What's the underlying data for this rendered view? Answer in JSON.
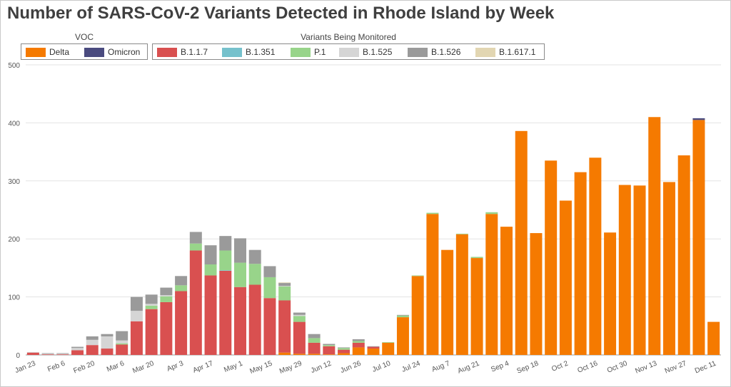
{
  "chart_data": {
    "type": "bar",
    "stacked": true,
    "title": "Number of SARS-CoV-2 Variants Detected in Rhode Island by Week",
    "ylim": [
      0,
      500
    ],
    "yticks": [
      "0",
      "100",
      "200",
      "300",
      "400",
      "500"
    ],
    "grid": true,
    "legend_groups": [
      {
        "title": "VOC",
        "items": [
          {
            "name": "Delta",
            "color": "#f57a00"
          },
          {
            "name": "Omicron",
            "color": "#4a4b7f"
          }
        ]
      },
      {
        "title": "Variants Being Monitored",
        "items": [
          {
            "name": "B.1.1.7",
            "color": "#d95050"
          },
          {
            "name": "B.1.351",
            "color": "#76c1cc"
          },
          {
            "name": "P.1",
            "color": "#98d48a"
          },
          {
            "name": "B.1.525",
            "color": "#d5d5d5"
          },
          {
            "name": "B.1.526",
            "color": "#9a9a9a"
          },
          {
            "name": "B.1.617.1",
            "color": "#e2d6b2"
          }
        ]
      }
    ],
    "x_tick_labels": [
      "Jan 23",
      "Feb 6",
      "Feb 20",
      "Mar 6",
      "Mar 20",
      "Apr 3",
      "Apr 17",
      "May 1",
      "May 15",
      "May 29",
      "Jun 12",
      "Jun 26",
      "Jul 10",
      "Jul 24",
      "Aug 7",
      "Aug 21",
      "Sep 4",
      "Sep 18",
      "Oct 2",
      "Oct 16",
      "Oct 30",
      "Nov 13",
      "Nov 27",
      "Dec 11"
    ],
    "series_order": [
      "Delta",
      "B.1.1.7",
      "B.1.351",
      "P.1",
      "B.1.525",
      "B.1.526",
      "B.1.617.1",
      "Omicron"
    ],
    "weeks": [
      {
        "Delta": 0,
        "B.1.1.7": 4,
        "B.1.351": 0,
        "P.1": 0,
        "B.1.525": 1,
        "B.1.526": 0,
        "B.1.617.1": 0,
        "Omicron": 0
      },
      {
        "Delta": 0,
        "B.1.1.7": 1,
        "B.1.351": 0,
        "P.1": 0,
        "B.1.525": 1,
        "B.1.526": 1,
        "B.1.617.1": 0,
        "Omicron": 0
      },
      {
        "Delta": 0,
        "B.1.1.7": 1,
        "B.1.351": 0,
        "P.1": 0,
        "B.1.525": 1,
        "B.1.526": 1,
        "B.1.617.1": 0,
        "Omicron": 0
      },
      {
        "Delta": 0,
        "B.1.1.7": 8,
        "B.1.351": 0,
        "P.1": 0,
        "B.1.525": 4,
        "B.1.526": 2,
        "B.1.617.1": 0,
        "Omicron": 0
      },
      {
        "Delta": 0,
        "B.1.1.7": 17,
        "B.1.351": 0,
        "P.1": 0,
        "B.1.525": 9,
        "B.1.526": 6,
        "B.1.617.1": 0,
        "Omicron": 0
      },
      {
        "Delta": 0,
        "B.1.1.7": 11,
        "B.1.351": 0,
        "P.1": 0,
        "B.1.525": 21,
        "B.1.526": 4,
        "B.1.617.1": 0,
        "Omicron": 0
      },
      {
        "Delta": 0,
        "B.1.1.7": 18,
        "B.1.351": 0,
        "P.1": 2,
        "B.1.525": 5,
        "B.1.526": 16,
        "B.1.617.1": 0,
        "Omicron": 0
      },
      {
        "Delta": 0,
        "B.1.1.7": 58,
        "B.1.351": 0,
        "P.1": 0,
        "B.1.525": 18,
        "B.1.526": 24,
        "B.1.617.1": 0,
        "Omicron": 0
      },
      {
        "Delta": 0,
        "B.1.1.7": 79,
        "B.1.351": 0,
        "P.1": 6,
        "B.1.525": 3,
        "B.1.526": 16,
        "B.1.617.1": 0,
        "Omicron": 0
      },
      {
        "Delta": 0,
        "B.1.1.7": 91,
        "B.1.351": 0,
        "P.1": 10,
        "B.1.525": 2,
        "B.1.526": 13,
        "B.1.617.1": 0,
        "Omicron": 0
      },
      {
        "Delta": 0,
        "B.1.1.7": 110,
        "B.1.351": 0,
        "P.1": 10,
        "B.1.525": 0,
        "B.1.526": 16,
        "B.1.617.1": 0,
        "Omicron": 0
      },
      {
        "Delta": 0,
        "B.1.1.7": 180,
        "B.1.351": 0,
        "P.1": 12,
        "B.1.525": 0,
        "B.1.526": 20,
        "B.1.617.1": 0,
        "Omicron": 0
      },
      {
        "Delta": 0,
        "B.1.1.7": 137,
        "B.1.351": 0,
        "P.1": 19,
        "B.1.525": 0,
        "B.1.526": 33,
        "B.1.617.1": 0,
        "Omicron": 0
      },
      {
        "Delta": 0,
        "B.1.1.7": 145,
        "B.1.351": 1,
        "P.1": 34,
        "B.1.525": 0,
        "B.1.526": 25,
        "B.1.617.1": 0,
        "Omicron": 0
      },
      {
        "Delta": 0,
        "B.1.1.7": 117,
        "B.1.351": 0,
        "P.1": 42,
        "B.1.525": 0,
        "B.1.526": 42,
        "B.1.617.1": 0,
        "Omicron": 0
      },
      {
        "Delta": 0,
        "B.1.1.7": 121,
        "B.1.351": 0,
        "P.1": 36,
        "B.1.525": 0,
        "B.1.526": 24,
        "B.1.617.1": 0,
        "Omicron": 0
      },
      {
        "Delta": 0,
        "B.1.1.7": 98,
        "B.1.351": 0,
        "P.1": 36,
        "B.1.525": 0,
        "B.1.526": 19,
        "B.1.617.1": 0,
        "Omicron": 0
      },
      {
        "Delta": 4,
        "B.1.1.7": 90,
        "B.1.351": 0,
        "P.1": 24,
        "B.1.525": 1,
        "B.1.526": 5,
        "B.1.617.1": 1,
        "Omicron": 0
      },
      {
        "Delta": 2,
        "B.1.1.7": 55,
        "B.1.351": 0,
        "P.1": 10,
        "B.1.525": 2,
        "B.1.526": 4,
        "B.1.617.1": 0,
        "Omicron": 0
      },
      {
        "Delta": 2,
        "B.1.1.7": 19,
        "B.1.351": 0,
        "P.1": 8,
        "B.1.525": 0,
        "B.1.526": 7,
        "B.1.617.1": 0,
        "Omicron": 0
      },
      {
        "Delta": 1,
        "B.1.1.7": 14,
        "B.1.351": 0,
        "P.1": 2,
        "B.1.525": 0,
        "B.1.526": 2,
        "B.1.617.1": 0,
        "Omicron": 0
      },
      {
        "Delta": 3,
        "B.1.1.7": 6,
        "B.1.351": 0,
        "P.1": 3,
        "B.1.525": 0,
        "B.1.526": 1,
        "B.1.617.1": 0,
        "Omicron": 0
      },
      {
        "Delta": 13,
        "B.1.1.7": 8,
        "B.1.351": 0,
        "P.1": 3,
        "B.1.525": 0,
        "B.1.526": 3,
        "B.1.617.1": 0,
        "Omicron": 0
      },
      {
        "Delta": 11,
        "B.1.1.7": 3,
        "B.1.351": 0,
        "P.1": 0,
        "B.1.525": 0,
        "B.1.526": 1,
        "B.1.617.1": 0,
        "Omicron": 0
      },
      {
        "Delta": 21,
        "B.1.1.7": 0,
        "B.1.351": 0,
        "P.1": 1,
        "B.1.525": 0,
        "B.1.526": 0,
        "B.1.617.1": 0,
        "Omicron": 0
      },
      {
        "Delta": 65,
        "B.1.1.7": 0,
        "B.1.351": 0,
        "P.1": 3,
        "B.1.525": 0,
        "B.1.526": 1,
        "B.1.617.1": 0,
        "Omicron": 0
      },
      {
        "Delta": 136,
        "B.1.1.7": 0,
        "B.1.351": 0,
        "P.1": 1,
        "B.1.525": 0,
        "B.1.526": 0,
        "B.1.617.1": 0,
        "Omicron": 0
      },
      {
        "Delta": 243,
        "B.1.1.7": 0,
        "B.1.351": 0,
        "P.1": 2,
        "B.1.525": 0,
        "B.1.526": 0,
        "B.1.617.1": 0,
        "Omicron": 0
      },
      {
        "Delta": 181,
        "B.1.1.7": 0,
        "B.1.351": 0,
        "P.1": 0,
        "B.1.525": 0,
        "B.1.526": 0,
        "B.1.617.1": 0,
        "Omicron": 0
      },
      {
        "Delta": 208,
        "B.1.1.7": 0,
        "B.1.351": 0,
        "P.1": 1,
        "B.1.525": 0,
        "B.1.526": 0,
        "B.1.617.1": 0,
        "Omicron": 0
      },
      {
        "Delta": 167,
        "B.1.1.7": 0,
        "B.1.351": 0,
        "P.1": 2,
        "B.1.525": 0,
        "B.1.526": 0,
        "B.1.617.1": 0,
        "Omicron": 0
      },
      {
        "Delta": 243,
        "B.1.1.7": 0,
        "B.1.351": 0,
        "P.1": 3,
        "B.1.525": 0,
        "B.1.526": 0,
        "B.1.617.1": 0,
        "Omicron": 0
      },
      {
        "Delta": 221,
        "B.1.1.7": 0,
        "B.1.351": 0,
        "P.1": 0,
        "B.1.525": 0,
        "B.1.526": 0,
        "B.1.617.1": 0,
        "Omicron": 0
      },
      {
        "Delta": 386,
        "B.1.1.7": 0,
        "B.1.351": 0,
        "P.1": 0,
        "B.1.525": 0,
        "B.1.526": 0,
        "B.1.617.1": 0,
        "Omicron": 0
      },
      {
        "Delta": 210,
        "B.1.1.7": 0,
        "B.1.351": 0,
        "P.1": 0,
        "B.1.525": 0,
        "B.1.526": 0,
        "B.1.617.1": 0,
        "Omicron": 0
      },
      {
        "Delta": 335,
        "B.1.1.7": 0,
        "B.1.351": 0,
        "P.1": 0,
        "B.1.525": 0,
        "B.1.526": 0,
        "B.1.617.1": 0,
        "Omicron": 0
      },
      {
        "Delta": 266,
        "B.1.1.7": 0,
        "B.1.351": 0,
        "P.1": 0,
        "B.1.525": 0,
        "B.1.526": 0,
        "B.1.617.1": 0,
        "Omicron": 0
      },
      {
        "Delta": 315,
        "B.1.1.7": 0,
        "B.1.351": 0,
        "P.1": 0,
        "B.1.525": 0,
        "B.1.526": 0,
        "B.1.617.1": 0,
        "Omicron": 0
      },
      {
        "Delta": 340,
        "B.1.1.7": 0,
        "B.1.351": 0,
        "P.1": 0,
        "B.1.525": 0,
        "B.1.526": 0,
        "B.1.617.1": 0,
        "Omicron": 0
      },
      {
        "Delta": 211,
        "B.1.1.7": 0,
        "B.1.351": 0,
        "P.1": 0,
        "B.1.525": 0,
        "B.1.526": 0,
        "B.1.617.1": 0,
        "Omicron": 0
      },
      {
        "Delta": 293,
        "B.1.1.7": 0,
        "B.1.351": 0,
        "P.1": 0,
        "B.1.525": 0,
        "B.1.526": 0,
        "B.1.617.1": 0,
        "Omicron": 0
      },
      {
        "Delta": 292,
        "B.1.1.7": 0,
        "B.1.351": 0,
        "P.1": 0,
        "B.1.525": 0,
        "B.1.526": 0,
        "B.1.617.1": 0,
        "Omicron": 0
      },
      {
        "Delta": 410,
        "B.1.1.7": 0,
        "B.1.351": 0,
        "P.1": 0,
        "B.1.525": 0,
        "B.1.526": 0,
        "B.1.617.1": 0,
        "Omicron": 0
      },
      {
        "Delta": 298,
        "B.1.1.7": 0,
        "B.1.351": 0,
        "P.1": 0,
        "B.1.525": 0,
        "B.1.526": 0,
        "B.1.617.1": 0,
        "Omicron": 0
      },
      {
        "Delta": 344,
        "B.1.1.7": 0,
        "B.1.351": 0,
        "P.1": 0,
        "B.1.525": 0,
        "B.1.526": 0,
        "B.1.617.1": 0,
        "Omicron": 0
      },
      {
        "Delta": 405,
        "B.1.1.7": 0,
        "B.1.351": 0,
        "P.1": 0,
        "B.1.525": 0,
        "B.1.526": 0,
        "B.1.617.1": 0,
        "Omicron": 3
      },
      {
        "Delta": 57,
        "B.1.1.7": 0,
        "B.1.351": 0,
        "P.1": 0,
        "B.1.525": 0,
        "B.1.526": 0,
        "B.1.617.1": 0,
        "Omicron": 0
      }
    ]
  }
}
